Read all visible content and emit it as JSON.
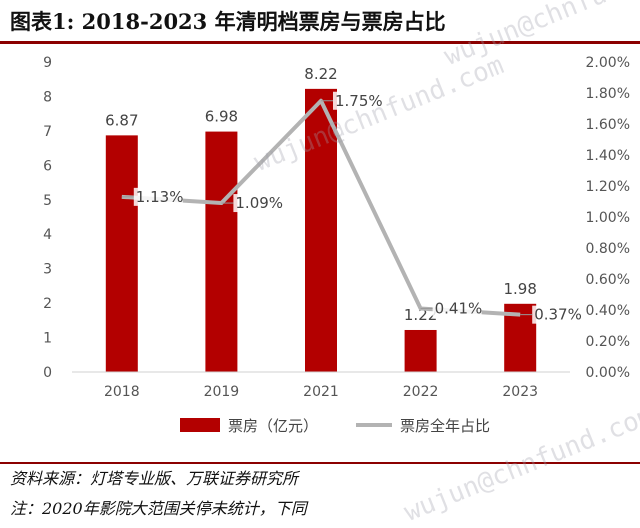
{
  "header": {
    "title": "图表1:   2018-2023 年清明档票房与票房占比"
  },
  "chart_data": {
    "type": "bar+line",
    "categories": [
      "2018",
      "2019",
      "2021",
      "2022",
      "2023"
    ],
    "series": [
      {
        "name": "票房（亿元）",
        "type": "bar",
        "axis": "left",
        "color": "#b30000",
        "values": [
          6.87,
          6.98,
          8.22,
          1.22,
          1.98
        ],
        "labels": [
          "6.87",
          "6.98",
          "8.22",
          "1.22",
          "1.98"
        ]
      },
      {
        "name": "票房全年占比",
        "type": "line",
        "axis": "right",
        "color": "#b3b3b3",
        "values": [
          1.13,
          1.09,
          1.75,
          0.41,
          0.37
        ],
        "labels": [
          "1.13%",
          "1.09%",
          "1.75%",
          "0.41%",
          "0.37%"
        ]
      }
    ],
    "y_left": {
      "ylim": [
        0,
        9
      ],
      "ticks": [
        "0",
        "1",
        "2",
        "3",
        "4",
        "5",
        "6",
        "7",
        "8",
        "9"
      ]
    },
    "y_right": {
      "ylim": [
        0,
        2
      ],
      "ticks": [
        "0.00%",
        "0.20%",
        "0.40%",
        "0.60%",
        "0.80%",
        "1.00%",
        "1.20%",
        "1.40%",
        "1.60%",
        "1.80%",
        "2.00%"
      ]
    },
    "grid": false,
    "legend_position": "bottom"
  },
  "footer": {
    "source": "资料来源：灯塔专业版、万联证券研究所",
    "note": "注：2020年影院大范围关停未统计，下同"
  },
  "watermarks": [
    "wujun@chnfund.com",
    "wujun@chnfund.com",
    "wujun@chnfund.com"
  ]
}
